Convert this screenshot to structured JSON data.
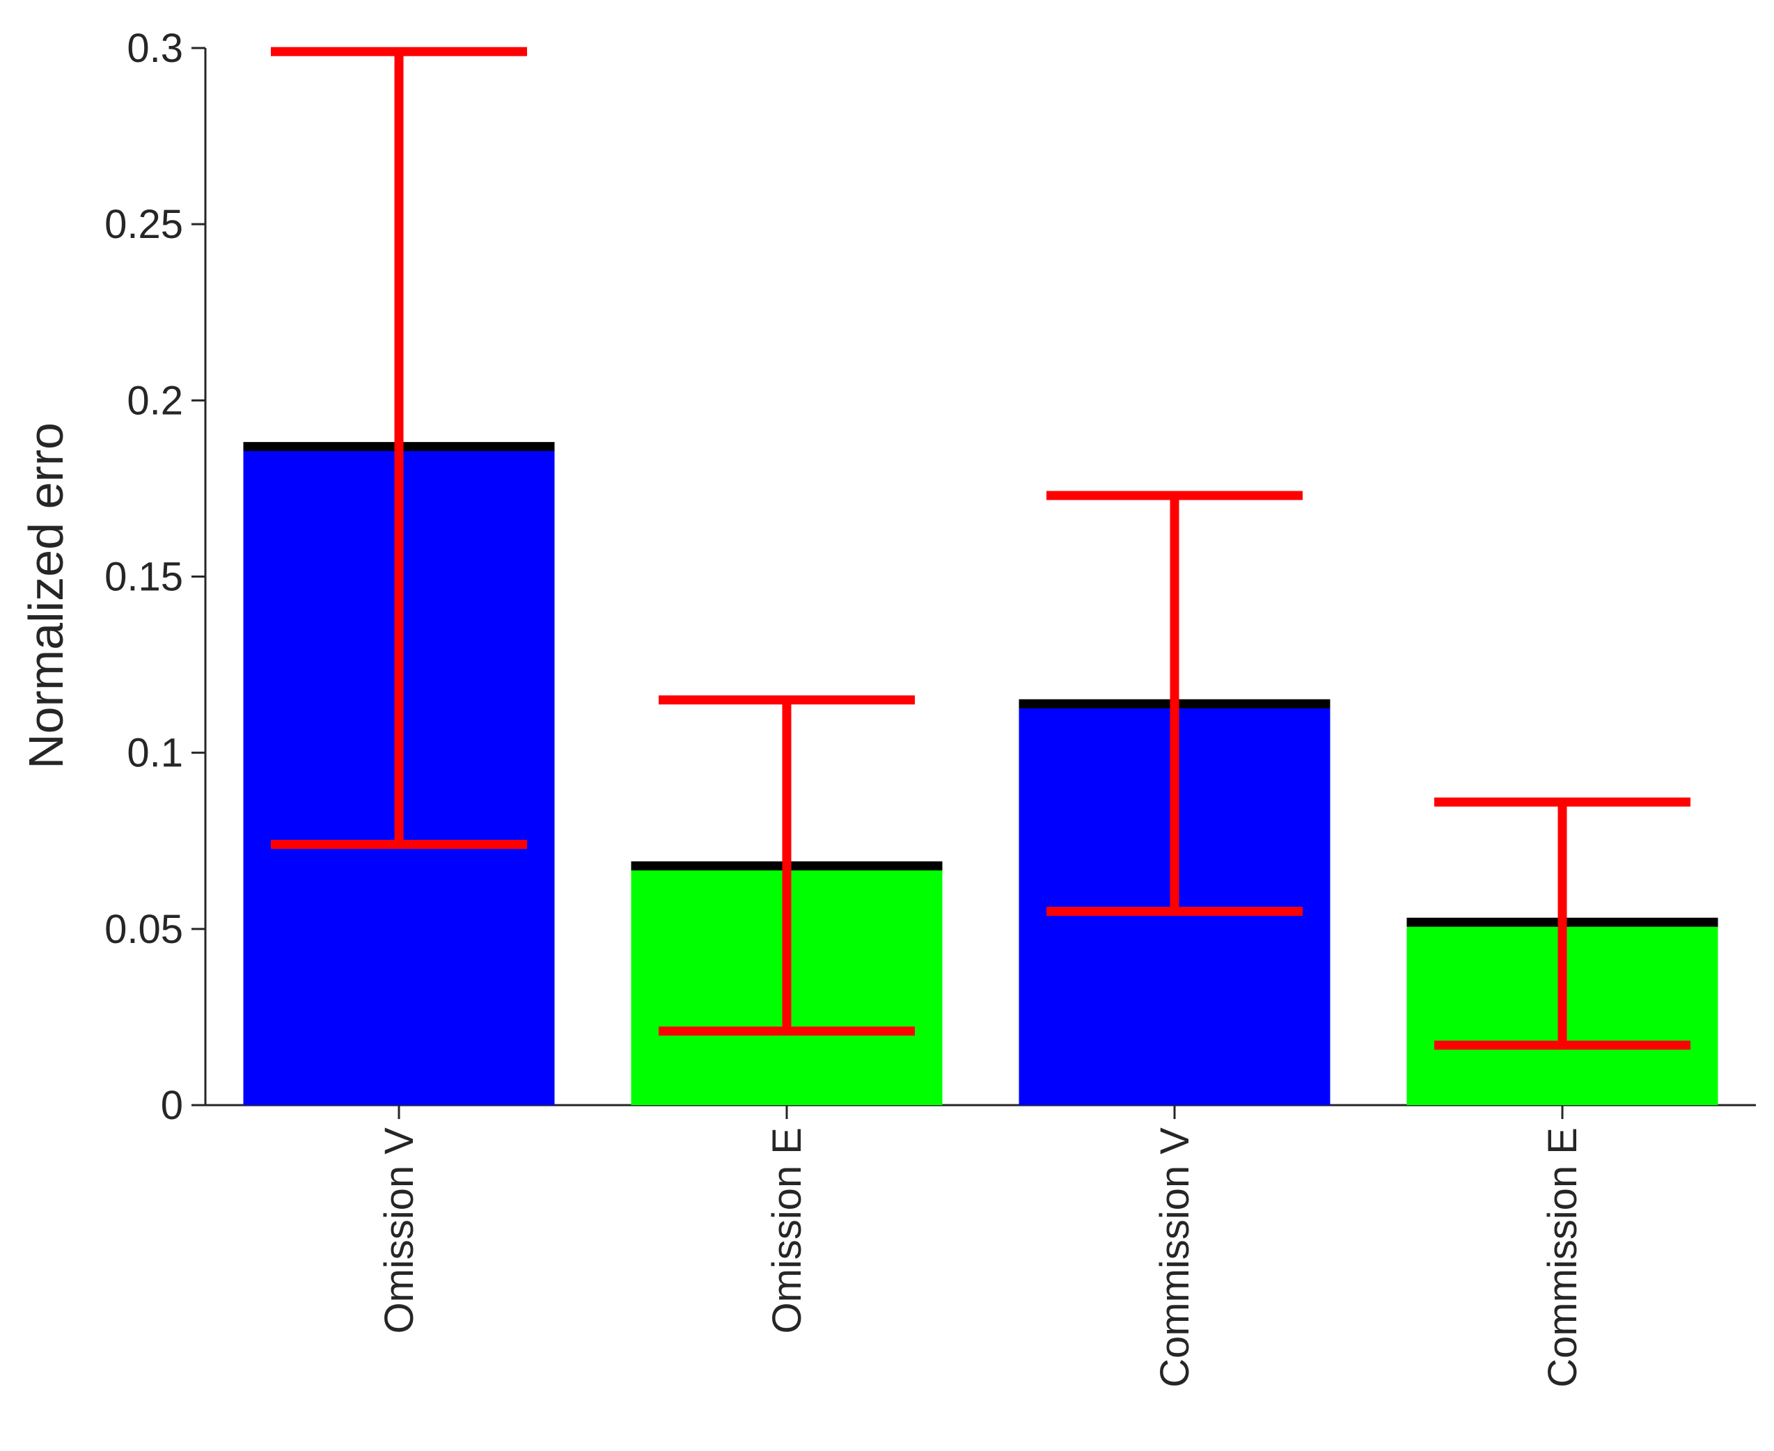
{
  "chart_data": {
    "type": "bar",
    "title": "",
    "xlabel": "",
    "ylabel": "Normalized erro",
    "ylim": [
      0,
      0.3
    ],
    "yticks": [
      0,
      0.05,
      0.1,
      0.15,
      0.2,
      0.25,
      0.3
    ],
    "ytick_labels": [
      "0",
      "0.05",
      "0.1",
      "0.15",
      "0.2",
      "0.25",
      "0.3"
    ],
    "categories": [
      "Omission V",
      "Omission E",
      "Commission V",
      "Commission E"
    ],
    "values": [
      0.187,
      0.068,
      0.114,
      0.052
    ],
    "error_low": [
      0.074,
      0.021,
      0.055,
      0.017
    ],
    "error_high": [
      0.299,
      0.115,
      0.173,
      0.086
    ],
    "bar_colors": [
      "#0000ff",
      "#00ff00",
      "#0000ff",
      "#00ff00"
    ],
    "mean_line_color": "#000000",
    "error_color": "#ff0000",
    "grid": false
  }
}
